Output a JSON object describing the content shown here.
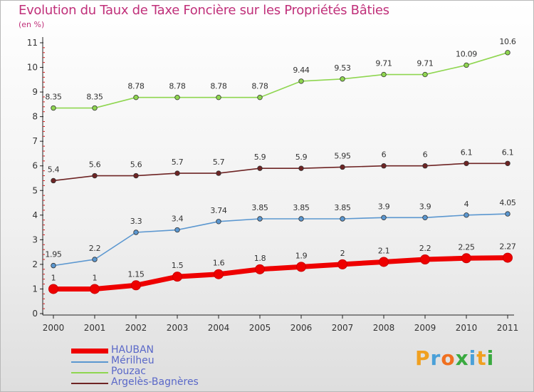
{
  "title": "Evolution du Taux de Taxe Foncière sur les Propriétés Bâties",
  "unit_label": "(en %)",
  "logo": {
    "text": "Proxiti",
    "letters": [
      {
        "ch": "P",
        "color": "#f0a020"
      },
      {
        "ch": "r",
        "color": "#4aa0d8"
      },
      {
        "ch": "o",
        "color": "#f07020"
      },
      {
        "ch": "x",
        "color": "#3aaa40"
      },
      {
        "ch": "i",
        "color": "#4aa0d8"
      },
      {
        "ch": "t",
        "color": "#f0a020"
      },
      {
        "ch": "i",
        "color": "#3aaa40"
      }
    ]
  },
  "chart_data": {
    "type": "line",
    "categories": [
      "2000",
      "2001",
      "2002",
      "2003",
      "2004",
      "2005",
      "2006",
      "2007",
      "2008",
      "2009",
      "2010",
      "2011"
    ],
    "ylim": [
      0,
      11
    ],
    "yticks": [
      "0",
      "1",
      "2",
      "3",
      "4",
      "5",
      "6",
      "7",
      "8",
      "9",
      "10",
      "11"
    ],
    "grid": false,
    "legend_position": "bottom-left",
    "series": [
      {
        "name": "HAUBAN",
        "color": "#ee0000",
        "labels": [
          "1",
          "1",
          "1.15",
          "1.5",
          "1.6",
          "1.8",
          "1.9",
          "2",
          "2.1",
          "2.2",
          "2.25",
          "2.27"
        ],
        "values": [
          1,
          1,
          1.15,
          1.5,
          1.6,
          1.8,
          1.9,
          2,
          2.1,
          2.2,
          2.25,
          2.27
        ]
      },
      {
        "name": "Mérilheu",
        "color": "#5b97d0",
        "labels": [
          "1.95",
          "2.2",
          "3.3",
          "3.4",
          "3.74",
          "3.85",
          "3.85",
          "3.85",
          "3.9",
          "3.9",
          "4",
          "4.05"
        ],
        "values": [
          1.95,
          2.2,
          3.3,
          3.4,
          3.74,
          3.85,
          3.85,
          3.85,
          3.9,
          3.9,
          4,
          4.05
        ]
      },
      {
        "name": "Pouzac",
        "color": "#8fd650",
        "labels": [
          "8.35",
          "8.35",
          "8.78",
          "8.78",
          "8.78",
          "8.78",
          "9.44",
          "9.53",
          "9.71",
          "9.71",
          "10.09",
          "10.6"
        ],
        "values": [
          8.35,
          8.35,
          8.78,
          8.78,
          8.78,
          8.78,
          9.44,
          9.53,
          9.71,
          9.71,
          10.09,
          10.6
        ]
      },
      {
        "name": "Argelès-Bagnères",
        "color": "#6e2424",
        "labels": [
          "5.4",
          "5.6",
          "5.6",
          "5.7",
          "5.7",
          "5.9",
          "5.9",
          "5.95",
          "6",
          "6",
          "6.1",
          "6.1"
        ],
        "values": [
          5.4,
          5.6,
          5.6,
          5.7,
          5.7,
          5.9,
          5.9,
          5.95,
          6,
          6,
          6.1,
          6.1
        ]
      }
    ]
  }
}
